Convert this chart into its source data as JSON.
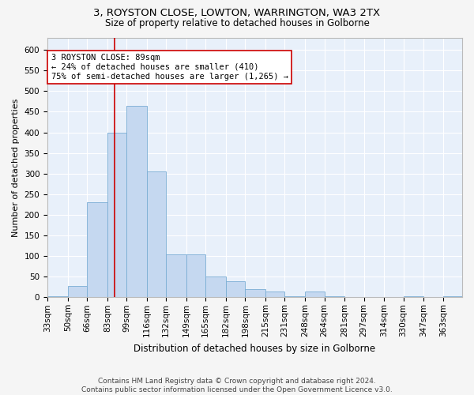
{
  "title1": "3, ROYSTON CLOSE, LOWTON, WARRINGTON, WA3 2TX",
  "title2": "Size of property relative to detached houses in Golborne",
  "xlabel": "Distribution of detached houses by size in Golborne",
  "ylabel": "Number of detached properties",
  "footer": "Contains HM Land Registry data © Crown copyright and database right 2024.\nContains public sector information licensed under the Open Government Licence v3.0.",
  "bin_labels": [
    "33sqm",
    "50sqm",
    "66sqm",
    "83sqm",
    "99sqm",
    "116sqm",
    "132sqm",
    "149sqm",
    "165sqm",
    "182sqm",
    "198sqm",
    "215sqm",
    "231sqm",
    "248sqm",
    "264sqm",
    "281sqm",
    "297sqm",
    "314sqm",
    "330sqm",
    "347sqm",
    "363sqm"
  ],
  "bin_edges": [
    33,
    50,
    66,
    83,
    99,
    116,
    132,
    149,
    165,
    182,
    198,
    215,
    231,
    248,
    264,
    281,
    297,
    314,
    330,
    347,
    363,
    379
  ],
  "bar_heights": [
    2,
    28,
    230,
    400,
    465,
    305,
    105,
    105,
    50,
    40,
    20,
    15,
    2,
    15,
    2,
    0,
    0,
    0,
    2,
    0,
    2
  ],
  "bar_color": "#c5d8f0",
  "bar_edge_color": "#7aadd4",
  "bg_color": "#e8f0fa",
  "grid_color": "#ffffff",
  "vline_x": 89,
  "vline_color": "#cc0000",
  "annotation_text": "3 ROYSTON CLOSE: 89sqm\n← 24% of detached houses are smaller (410)\n75% of semi-detached houses are larger (1,265) →",
  "annotation_box_color": "#ffffff",
  "annotation_border_color": "#cc0000",
  "ylim": [
    0,
    630
  ],
  "yticks": [
    0,
    50,
    100,
    150,
    200,
    250,
    300,
    350,
    400,
    450,
    500,
    550,
    600
  ],
  "title1_fontsize": 9.5,
  "title2_fontsize": 8.5,
  "xlabel_fontsize": 8.5,
  "ylabel_fontsize": 8,
  "tick_fontsize": 7.5,
  "footer_fontsize": 6.5,
  "annotation_fontsize": 7.5
}
